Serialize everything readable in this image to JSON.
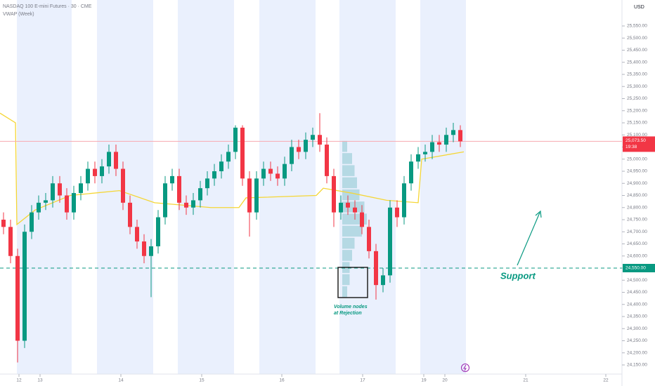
{
  "chart_data": {
    "type": "candlestick",
    "title": "NASDAQ 100 E-mini Futures · 30 · CME",
    "indicator": "VWAP (Week)",
    "currency": "USD",
    "open": [
      24750,
      24720,
      24600,
      24250,
      24700,
      24780,
      24820,
      24830,
      24900,
      24850,
      24780,
      24860,
      24900,
      24960,
      24930,
      24970,
      25030,
      24960,
      24820,
      24720,
      24660,
      24600,
      24640,
      24760,
      24900,
      24930,
      24820,
      24800,
      24830,
      24880,
      24920,
      24950,
      24990,
      25030,
      25130,
      24920,
      24780,
      24920,
      24960,
      24940,
      24920,
      24980,
      25050,
      25030,
      25080,
      25100,
      25060,
      24930,
      24780,
      24820,
      24800,
      24780,
      24720,
      24620,
      24480,
      24520,
      24800,
      24760,
      24900,
      24990,
      25020,
      25030,
      25070,
      25060,
      25100,
      25120
    ],
    "high": [
      24780,
      24750,
      24630,
      24730,
      24810,
      24850,
      24860,
      24930,
      24930,
      24880,
      24890,
      24930,
      24990,
      24990,
      25000,
      25060,
      25060,
      24990,
      24850,
      24750,
      24690,
      24670,
      24790,
      24930,
      24960,
      24960,
      24850,
      24860,
      24910,
      24950,
      24980,
      25020,
      25060,
      25140,
      25140,
      24950,
      24950,
      24990,
      24990,
      24970,
      25010,
      25080,
      25080,
      25110,
      25130,
      25190,
      25090,
      24960,
      24850,
      24850,
      24830,
      24810,
      24750,
      24650,
      24550,
      24830,
      24830,
      24930,
      25020,
      25050,
      25060,
      25100,
      25100,
      25130,
      25150,
      25140
    ],
    "low": [
      24690,
      24570,
      24160,
      24220,
      24670,
      24750,
      24790,
      24800,
      24820,
      24750,
      24750,
      24830,
      24870,
      24900,
      24900,
      24940,
      24930,
      24790,
      24690,
      24630,
      24570,
      24430,
      24610,
      24730,
      24870,
      24790,
      24770,
      24770,
      24800,
      24850,
      24890,
      24920,
      24960,
      25000,
      24890,
      24680,
      24750,
      24890,
      24910,
      24890,
      24890,
      24950,
      25000,
      25000,
      25050,
      25030,
      24900,
      24720,
      24750,
      24770,
      24750,
      24690,
      24590,
      24420,
      24450,
      24490,
      24720,
      24730,
      24870,
      24960,
      24990,
      25000,
      25030,
      25030,
      25070,
      25050
    ],
    "close": [
      24720,
      24600,
      24250,
      24700,
      24780,
      24820,
      24830,
      24900,
      24850,
      24780,
      24860,
      24900,
      24960,
      24930,
      24970,
      25030,
      24960,
      24820,
      24720,
      24660,
      24600,
      24640,
      24760,
      24900,
      24930,
      24820,
      24800,
      24830,
      24880,
      24920,
      24950,
      24990,
      25030,
      25130,
      24920,
      24780,
      24920,
      24960,
      24940,
      24920,
      24980,
      25050,
      25030,
      25080,
      25100,
      25060,
      24930,
      24780,
      24820,
      24800,
      24780,
      24720,
      24620,
      24480,
      24520,
      24800,
      24760,
      24900,
      24990,
      25020,
      25030,
      25070,
      25060,
      25100,
      25120,
      25073.5
    ],
    "up_color": "#089981",
    "down_color": "#f23645",
    "vwap": {
      "color": "#f5d635",
      "x": [
        0,
        2.2,
        2.4,
        5,
        10,
        17,
        22,
        30,
        34,
        35,
        45,
        46,
        50,
        55,
        59.5,
        60,
        66
      ],
      "values": [
        25190,
        25150,
        24730,
        24790,
        24850,
        24870,
        24820,
        24800,
        24800,
        24840,
        24850,
        24880,
        24860,
        24830,
        24820,
        25000,
        25030
      ]
    },
    "volume_profile": {
      "color": "#a7d3dd",
      "levels": [
        24450,
        24500,
        24550,
        24600,
        24650,
        24700,
        24750,
        24800,
        24850,
        24900,
        24950,
        25000,
        25050
      ],
      "values": [
        2,
        3,
        3,
        4,
        5,
        8,
        10,
        9,
        7,
        6,
        5,
        4,
        2
      ]
    },
    "last_price": {
      "value": 25073.5,
      "label": "25,073.50",
      "countdown": "19:38"
    },
    "support": {
      "value": 24550,
      "label": "24,550.00",
      "text": "Support"
    },
    "annotation": "Volume nodes at Rejection",
    "xlim": [
      0,
      88.5
    ],
    "xticks": [
      {
        "value": 2.7,
        "label": "12"
      },
      {
        "value": 5.7,
        "label": "13"
      },
      {
        "value": 17.2,
        "label": "14"
      },
      {
        "value": 28.7,
        "label": "15"
      },
      {
        "value": 40.1,
        "label": "16"
      },
      {
        "value": 51.6,
        "label": "17"
      },
      {
        "value": 60.3,
        "label": "19"
      },
      {
        "value": 63.3,
        "label": "20"
      },
      {
        "value": 74.8,
        "label": "21"
      },
      {
        "value": 86.2,
        "label": "22"
      }
    ],
    "ylim": [
      24150,
      25550
    ],
    "yticks": [
      {
        "value": 24150,
        "label": "24,150.00"
      },
      {
        "value": 24200,
        "label": "24,200.00"
      },
      {
        "value": 24250,
        "label": "24,250.00"
      },
      {
        "value": 24300,
        "label": "24,300.00"
      },
      {
        "value": 24350,
        "label": "24,350.00"
      },
      {
        "value": 24400,
        "label": "24,400.00"
      },
      {
        "value": 24450,
        "label": "24,450.00"
      },
      {
        "value": 24500,
        "label": "24,500.00"
      },
      {
        "value": 24550,
        "label": "24,550.00"
      },
      {
        "value": 24600,
        "label": "24,600.00"
      },
      {
        "value": 24650,
        "label": "24,650.00"
      },
      {
        "value": 24700,
        "label": "24,700.00"
      },
      {
        "value": 24750,
        "label": "24,750.00"
      },
      {
        "value": 24800,
        "label": "24,800.00"
      },
      {
        "value": 24850,
        "label": "24,850.00"
      },
      {
        "value": 24900,
        "label": "24,900.00"
      },
      {
        "value": 24950,
        "label": "24,950.00"
      },
      {
        "value": 25000,
        "label": "25,000.00"
      },
      {
        "value": 25050,
        "label": "25,050.00"
      },
      {
        "value": 25100,
        "label": "25,100.00"
      },
      {
        "value": 25150,
        "label": "25,150.00"
      },
      {
        "value": 25200,
        "label": "25,200.00"
      },
      {
        "value": 25250,
        "label": "25,250.00"
      },
      {
        "value": 25300,
        "label": "25,300.00"
      },
      {
        "value": 25350,
        "label": "25,350.00"
      },
      {
        "value": 25400,
        "label": "25,400.00"
      },
      {
        "value": 25450,
        "label": "25,450.00"
      },
      {
        "value": 25500,
        "label": "25,500.00"
      },
      {
        "value": 25550,
        "label": "25,550.00"
      }
    ]
  }
}
